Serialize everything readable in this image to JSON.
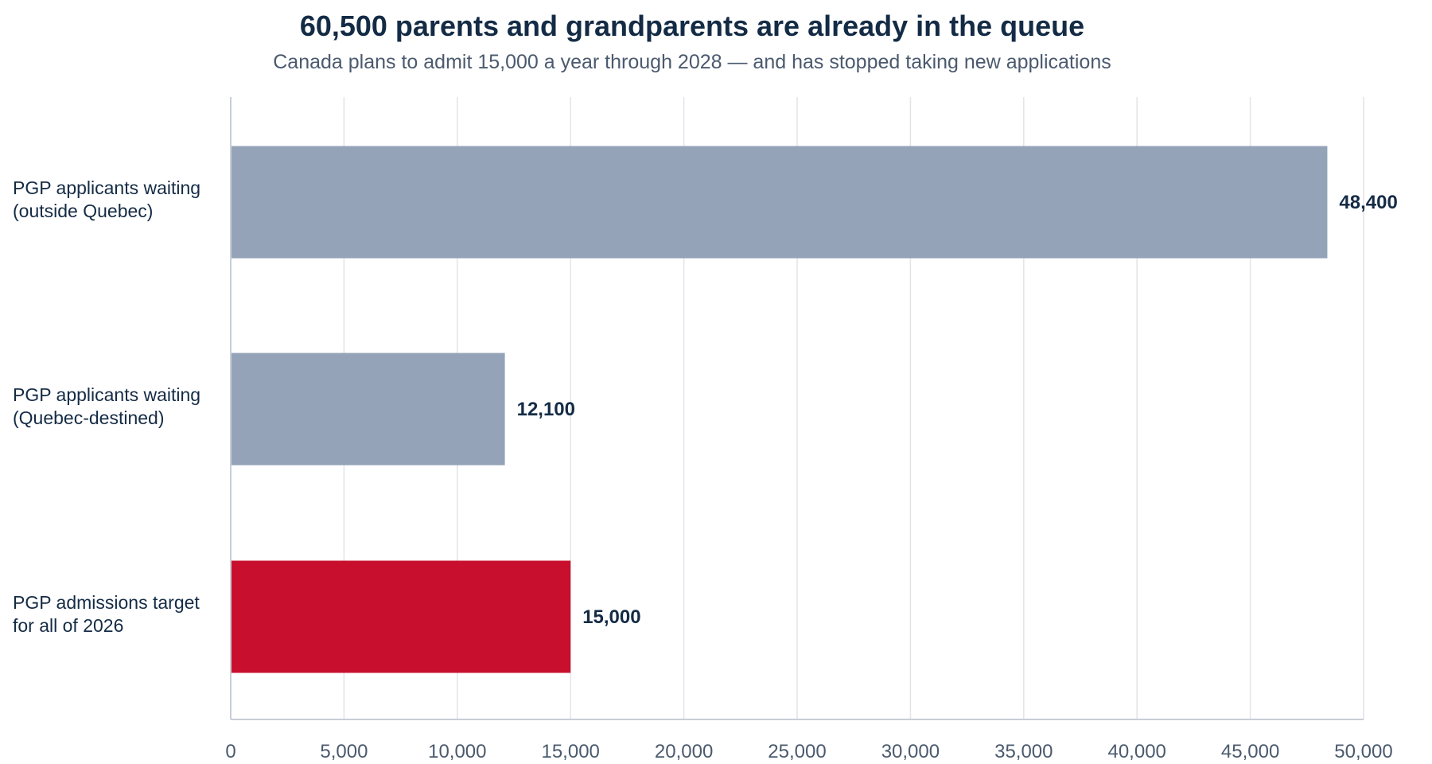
{
  "chart_data": {
    "type": "bar",
    "orientation": "horizontal",
    "title": "60,500 parents and grandparents are already in the queue",
    "subtitle": "Canada plans to admit 15,000 a year through 2028 — and has stopped taking new applications",
    "categories": [
      [
        "PGP applicants waiting",
        "(outside Quebec)"
      ],
      [
        "PGP applicants waiting",
        "(Quebec-destined)"
      ],
      [
        "PGP admissions target",
        "for all of 2026"
      ]
    ],
    "values": [
      48400,
      12100,
      15000
    ],
    "value_labels": [
      "48,400",
      "12,100",
      "15,000"
    ],
    "colors": [
      "#94a3b8",
      "#94a3b8",
      "#c8102e"
    ],
    "xlim": [
      0,
      50000
    ],
    "xticks": [
      0,
      5000,
      10000,
      15000,
      20000,
      25000,
      30000,
      35000,
      40000,
      45000,
      50000
    ],
    "xtick_labels": [
      "0",
      "5,000",
      "10,000",
      "15,000",
      "20,000",
      "25,000",
      "30,000",
      "35,000",
      "40,000",
      "45,000",
      "50,000"
    ],
    "xlabel": "",
    "ylabel": "",
    "grid": "vertical",
    "legend": "none"
  }
}
